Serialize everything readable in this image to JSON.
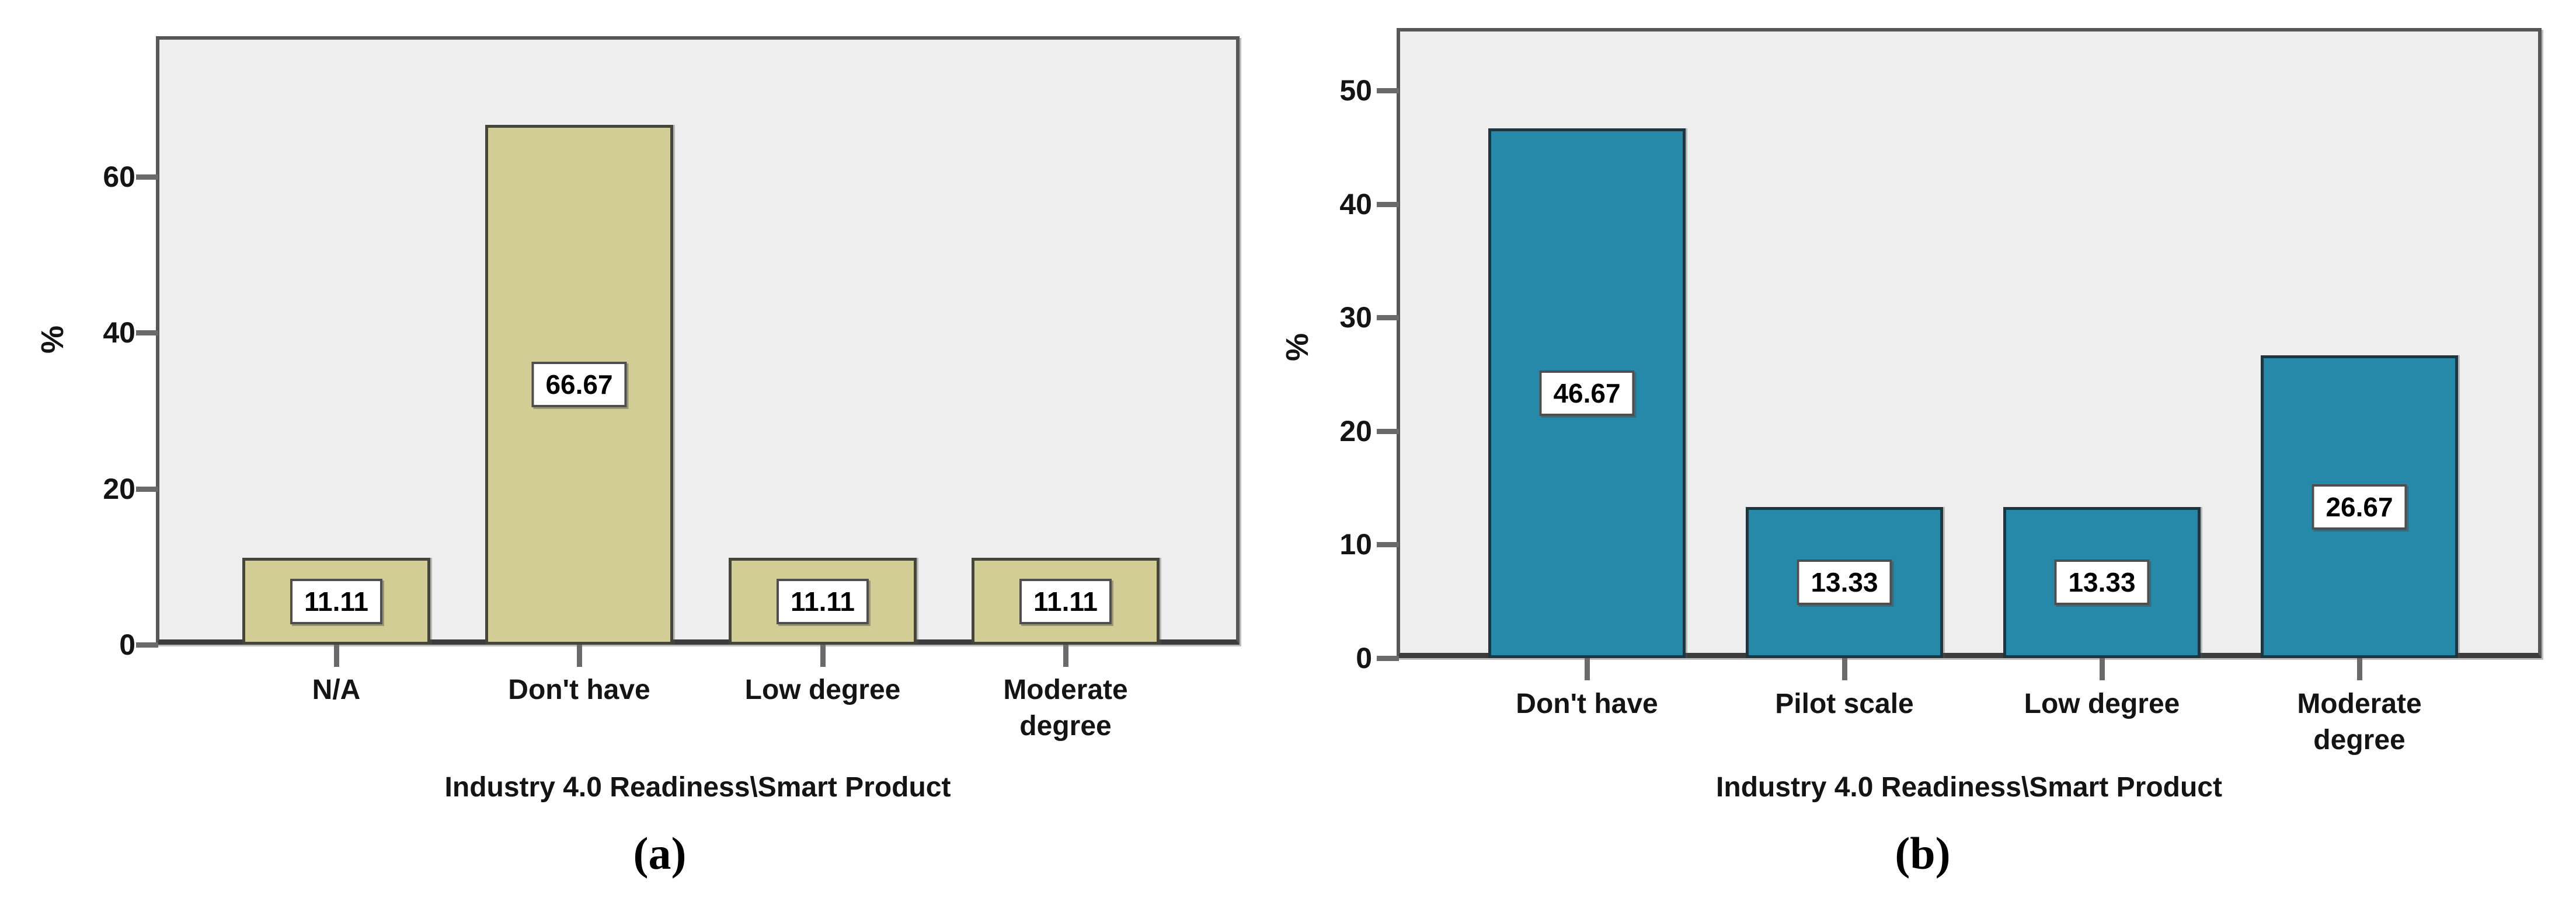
{
  "figure": {
    "background": "#ffffff",
    "plot_background": "#efeeee",
    "frame_color": "#575757",
    "text_color": "#141414"
  },
  "chart_data": [
    {
      "id": "a",
      "type": "bar",
      "caption": "(a)",
      "xlabel": "Industry 4.0 Readiness\\Smart Product",
      "ylabel": "%",
      "categories": [
        "N/A",
        "Don't have",
        "Low degree",
        "Moderate degree"
      ],
      "category_lines": [
        [
          "N/A"
        ],
        [
          "Don't have"
        ],
        [
          "Low degree"
        ],
        [
          "Moderate",
          "degree"
        ]
      ],
      "values": [
        11.11,
        66.67,
        11.11,
        11.11
      ],
      "value_labels": [
        "11.11",
        "66.67",
        "11.11",
        "11.11"
      ],
      "yticks": [
        0,
        20,
        40,
        60
      ],
      "ylim": [
        0,
        78
      ],
      "grid": false,
      "legend": null,
      "bar_color": "#d2cc95",
      "bar_border_color": "#45453a",
      "value_box_background": "#ffffff",
      "value_box_border": "#4e4e4e"
    },
    {
      "id": "b",
      "type": "bar",
      "caption": "(b)",
      "xlabel": "Industry 4.0 Readiness\\Smart Product",
      "ylabel": "%",
      "categories": [
        "Don't have",
        "Pilot scale",
        "Low degree",
        "Moderate degree"
      ],
      "category_lines": [
        [
          "Don't have"
        ],
        [
          "Pilot scale"
        ],
        [
          "Low degree"
        ],
        [
          "Moderate",
          "degree"
        ]
      ],
      "values": [
        46.67,
        13.33,
        13.33,
        26.67
      ],
      "value_labels": [
        "46.67",
        "13.33",
        "13.33",
        "26.67"
      ],
      "yticks": [
        0,
        10,
        20,
        30,
        40,
        50
      ],
      "ylim": [
        0,
        55.5
      ],
      "grid": false,
      "legend": null,
      "bar_color": "#2689aa",
      "bar_border_color": "#1d3640",
      "value_box_background": "#ffffff",
      "value_box_border": "#4e4e4e"
    }
  ]
}
